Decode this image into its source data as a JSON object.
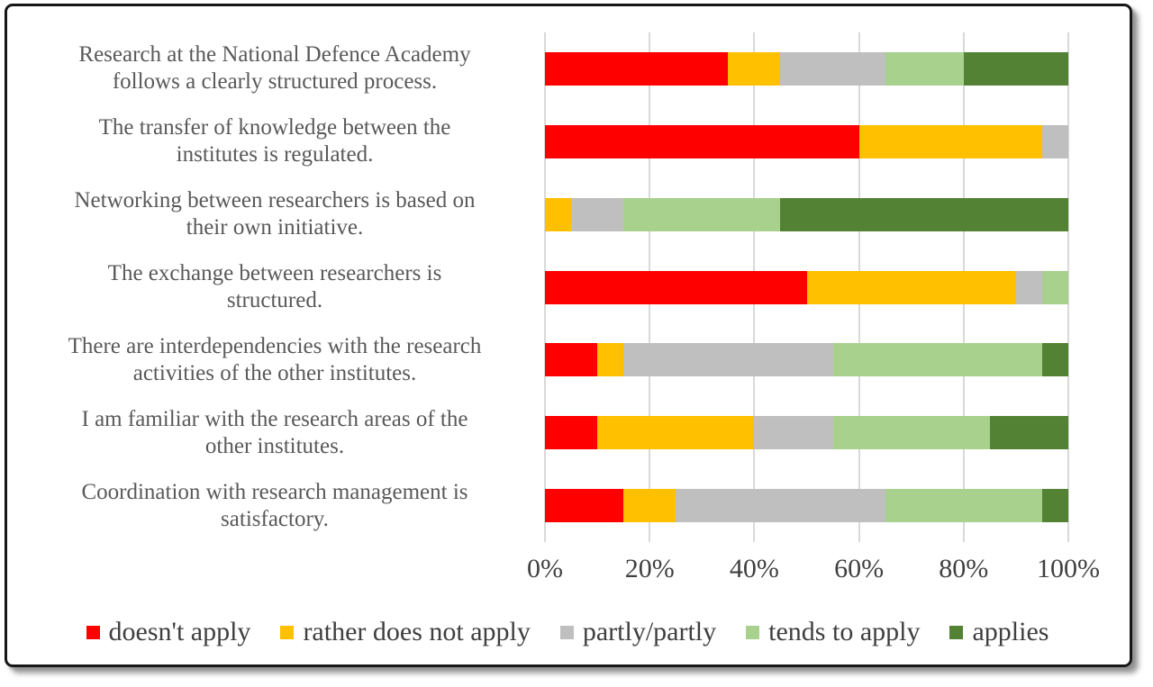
{
  "frame": {
    "background": "#ffffff",
    "border_color": "#161616"
  },
  "chart_data": {
    "type": "bar",
    "orientation": "horizontal",
    "stacked": true,
    "unit": "percent",
    "title": "",
    "xlabel": "",
    "ylabel": "",
    "xlim": [
      0,
      100
    ],
    "x_ticks": [
      "0%",
      "20%",
      "40%",
      "60%",
      "80%",
      "100%"
    ],
    "grid": true,
    "gridline_color": "#D9D9D9",
    "category_label_color": "#595959",
    "tick_label_color": "#404040",
    "legend_position": "bottom",
    "categories": [
      "Research at the National Defence Academy\nfollows a clearly structured process.",
      "The transfer of knowledge between the\ninstitutes is regulated.",
      "Networking between researchers is based on\ntheir own initiative.",
      "The exchange between researchers is\nstructured.",
      "There are interdependencies with the research\nactivities of the other institutes.",
      "I am familiar with the research areas of the\nother institutes.",
      "Coordination with research management is\nsatisfactory."
    ],
    "series": [
      {
        "name": "doesn't apply",
        "color": "#FF0000",
        "values": [
          35,
          60,
          0,
          50,
          10,
          10,
          15
        ]
      },
      {
        "name": "rather does not apply",
        "color": "#FFC000",
        "values": [
          10,
          35,
          5,
          40,
          5,
          30,
          10
        ]
      },
      {
        "name": "partly/partly",
        "color": "#BFBFBF",
        "values": [
          20,
          5,
          10,
          5,
          40,
          15,
          40
        ]
      },
      {
        "name": "tends to apply",
        "color": "#A9D18E",
        "values": [
          15,
          0,
          30,
          5,
          40,
          30,
          30
        ]
      },
      {
        "name": "applies",
        "color": "#548235",
        "values": [
          20,
          0,
          55,
          0,
          5,
          15,
          5
        ]
      }
    ]
  }
}
